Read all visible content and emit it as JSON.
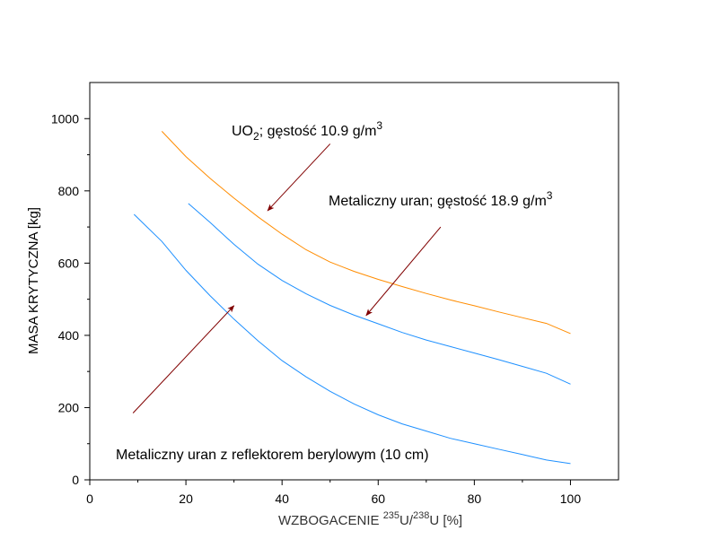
{
  "chart_data": {
    "type": "line",
    "title": "",
    "xlabel_main": "WZBOGACENIE ",
    "xlabel_sup1": "235",
    "xlabel_mid": "U/",
    "xlabel_sup2": "238",
    "xlabel_end": "U [%]",
    "ylabel": "MASA KRYTYCZNA [kg]",
    "xlim": [
      0,
      110
    ],
    "ylim": [
      0,
      1100
    ],
    "xticks": [
      0,
      20,
      40,
      60,
      80,
      100
    ],
    "yticks": [
      0,
      200,
      400,
      600,
      800,
      1000
    ],
    "xminor": [
      10,
      30,
      50,
      70,
      90
    ],
    "yminor": [
      100,
      300,
      500,
      700,
      900
    ],
    "grid": false,
    "series": [
      {
        "color": "#FF8C00",
        "x": [
          15,
          20,
          25,
          30,
          35,
          40,
          45,
          50,
          55,
          60,
          65,
          70,
          75,
          80,
          85,
          90,
          95,
          100
        ],
        "y": [
          965,
          895,
          835,
          780,
          728,
          680,
          637,
          603,
          577,
          555,
          535,
          516,
          498,
          482,
          465,
          449,
          433,
          405
        ]
      },
      {
        "color": "#1E90FF",
        "x": [
          20.5,
          25,
          30,
          35,
          40,
          45,
          50,
          55,
          60,
          65,
          70,
          75,
          80,
          85,
          90,
          95,
          100
        ],
        "y": [
          765,
          713,
          652,
          597,
          552,
          515,
          483,
          456,
          432,
          408,
          387,
          369,
          351,
          333,
          314,
          295,
          265
        ]
      },
      {
        "color": "#1E90FF",
        "x": [
          9.2,
          15,
          20,
          25,
          30,
          35,
          40,
          45,
          50,
          55,
          60,
          65,
          70,
          75,
          80,
          85,
          90,
          95,
          100
        ],
        "y": [
          735,
          660,
          580,
          510,
          445,
          385,
          330,
          285,
          245,
          210,
          180,
          155,
          135,
          115,
          100,
          85,
          70,
          55,
          45
        ]
      }
    ],
    "annotations": [
      {
        "id": "uo2",
        "text_main": "UO",
        "text_sub": "2",
        "text_rest": "; gęstość 10.9 g/m",
        "text_sup": "3",
        "arrow_from": [
          50,
          930
        ],
        "arrow_to": [
          37,
          745
        ]
      },
      {
        "id": "metal",
        "text_main": "Metaliczny uran; gęstość 18.9 g/m",
        "text_sup": "3",
        "arrow_from": [
          73,
          700
        ],
        "arrow_to": [
          57.5,
          455
        ]
      },
      {
        "id": "beryl",
        "text_main": "Metaliczny uran z reflektorem berylowym (10 cm)",
        "arrow_from": [
          9,
          185
        ],
        "arrow_to": [
          30,
          482
        ]
      }
    ]
  }
}
